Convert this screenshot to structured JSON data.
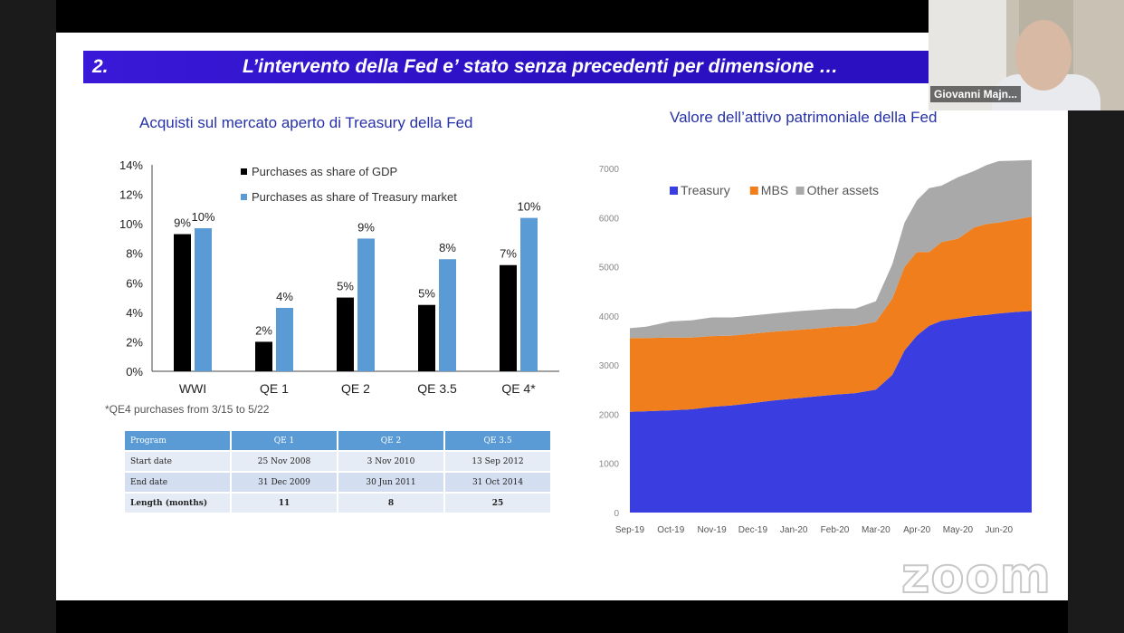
{
  "slide": {
    "number": "2.",
    "title": "L’intervento della Fed  e’ stato senza precedenti per dimensione …",
    "left_subtitle": "Acquisti sul mercato aperto di Treasury della Fed",
    "right_subtitle": "Valore dell’attivo patrimoniale della Fed",
    "footnote": "*QE4 purchases from 3/15 to 5/22"
  },
  "webcam": {
    "participant_name": "Giovanni Majn..."
  },
  "watermark": "zoom",
  "colors": {
    "black_bar": "#000000",
    "blue_bar": "#5b9bd5",
    "treasury": "#3a3ee0",
    "mbs": "#f07e1c",
    "other": "#a9a9a9"
  },
  "table": {
    "headers": [
      "Program",
      "QE 1",
      "QE 2",
      "QE 3.5"
    ],
    "rows": [
      [
        "Start date",
        "25 Nov 2008",
        "3 Nov 2010",
        "13 Sep 2012"
      ],
      [
        "End date",
        "31 Dec 2009",
        "30 Jun 2011",
        "31 Oct 2014"
      ],
      [
        "Length (months)",
        "11",
        "8",
        "25"
      ]
    ]
  },
  "chart_data": [
    {
      "type": "bar",
      "categories": [
        "WWI",
        "QE 1",
        "QE 2",
        "QE 3.5",
        "QE 4*"
      ],
      "series": [
        {
          "name": "Purchases as share of GDP",
          "values": [
            9.3,
            2.0,
            5.0,
            4.5,
            7.2
          ],
          "labels": [
            "9%",
            "2%",
            "5%",
            "5%",
            "7%"
          ]
        },
        {
          "name": "Purchases as share of Treasury market",
          "values": [
            9.7,
            4.3,
            9.0,
            7.6,
            10.4
          ],
          "labels": [
            "10%",
            "4%",
            "9%",
            "8%",
            "10%"
          ]
        }
      ],
      "yticks": [
        "0%",
        "2%",
        "4%",
        "6%",
        "8%",
        "10%",
        "12%",
        "14%"
      ],
      "ylim": [
        0,
        14
      ],
      "legend": "top"
    },
    {
      "type": "area",
      "stacked": true,
      "x_ticks": [
        "Sep-19",
        "Oct-19",
        "Nov-19",
        "Dec-19",
        "Jan-20",
        "Feb-20",
        "Mar-20",
        "Apr-20",
        "May-20",
        "Jun-20"
      ],
      "x": [
        0,
        0.4,
        1,
        1.5,
        2,
        2.5,
        3,
        3.5,
        4,
        4.5,
        5,
        5.5,
        6,
        6.4,
        6.7,
        7,
        7.3,
        7.6,
        8,
        8.4,
        8.7,
        9,
        9.4,
        9.8
      ],
      "series": [
        {
          "name": "Treasury",
          "values": [
            2050,
            2060,
            2080,
            2100,
            2150,
            2180,
            2230,
            2280,
            2320,
            2360,
            2400,
            2430,
            2500,
            2800,
            3300,
            3600,
            3800,
            3900,
            3950,
            4000,
            4020,
            4050,
            4080,
            4100
          ]
        },
        {
          "name": "MBS",
          "values": [
            1500,
            1490,
            1480,
            1460,
            1440,
            1420,
            1410,
            1400,
            1390,
            1380,
            1380,
            1370,
            1380,
            1550,
            1700,
            1700,
            1500,
            1600,
            1620,
            1800,
            1850,
            1850,
            1880,
            1920
          ]
        },
        {
          "name": "Other assets",
          "values": [
            200,
            230,
            330,
            350,
            380,
            370,
            370,
            370,
            380,
            380,
            370,
            350,
            420,
            700,
            900,
            1050,
            1300,
            1150,
            1250,
            1150,
            1200,
            1250,
            1200,
            1150
          ]
        }
      ],
      "yticks": [
        "0",
        "1000",
        "2000",
        "3000",
        "4000",
        "5000",
        "6000",
        "7000"
      ],
      "ylim": [
        0,
        7000
      ],
      "legend": "top-left"
    }
  ]
}
